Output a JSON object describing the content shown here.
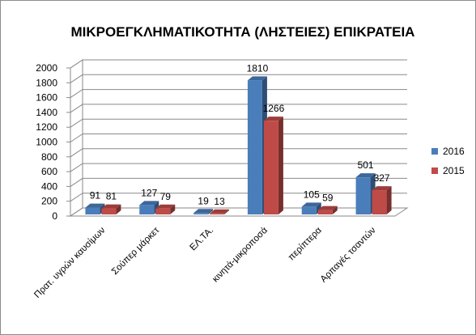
{
  "chart_data": {
    "type": "bar",
    "title": "ΜΙΚΡΟΕΓΚΛΗΜΑΤΙΚΟΤΗΤΑ (ΛΗΣΤΕΙΕΣ) ΕΠΙΚΡΑΤΕΙΑ",
    "xlabel": "",
    "ylabel": "",
    "categories": [
      "Πρατ. υγρών καυσίμων",
      "Σούπερ μάρκετ",
      "ΕΛ.ΤΑ.",
      "κινητά-μικροποσά",
      "περίπτερα",
      "Αρπαγές τσαντών"
    ],
    "series": [
      {
        "name": "2016",
        "values": [
          91,
          127,
          19,
          1810,
          105,
          501
        ],
        "color": "#4a7ebb"
      },
      {
        "name": "2015",
        "values": [
          81,
          79,
          13,
          1266,
          59,
          327
        ],
        "color": "#be4b48"
      }
    ],
    "ylim": [
      0,
      2000
    ],
    "yticks": [
      "0",
      "200",
      "400",
      "600",
      "800",
      "1000",
      "1200",
      "1400",
      "1600",
      "1800",
      "2000"
    ],
    "data_labels": true,
    "grid": true,
    "legend": "right",
    "style": "3d-clustered-column"
  }
}
